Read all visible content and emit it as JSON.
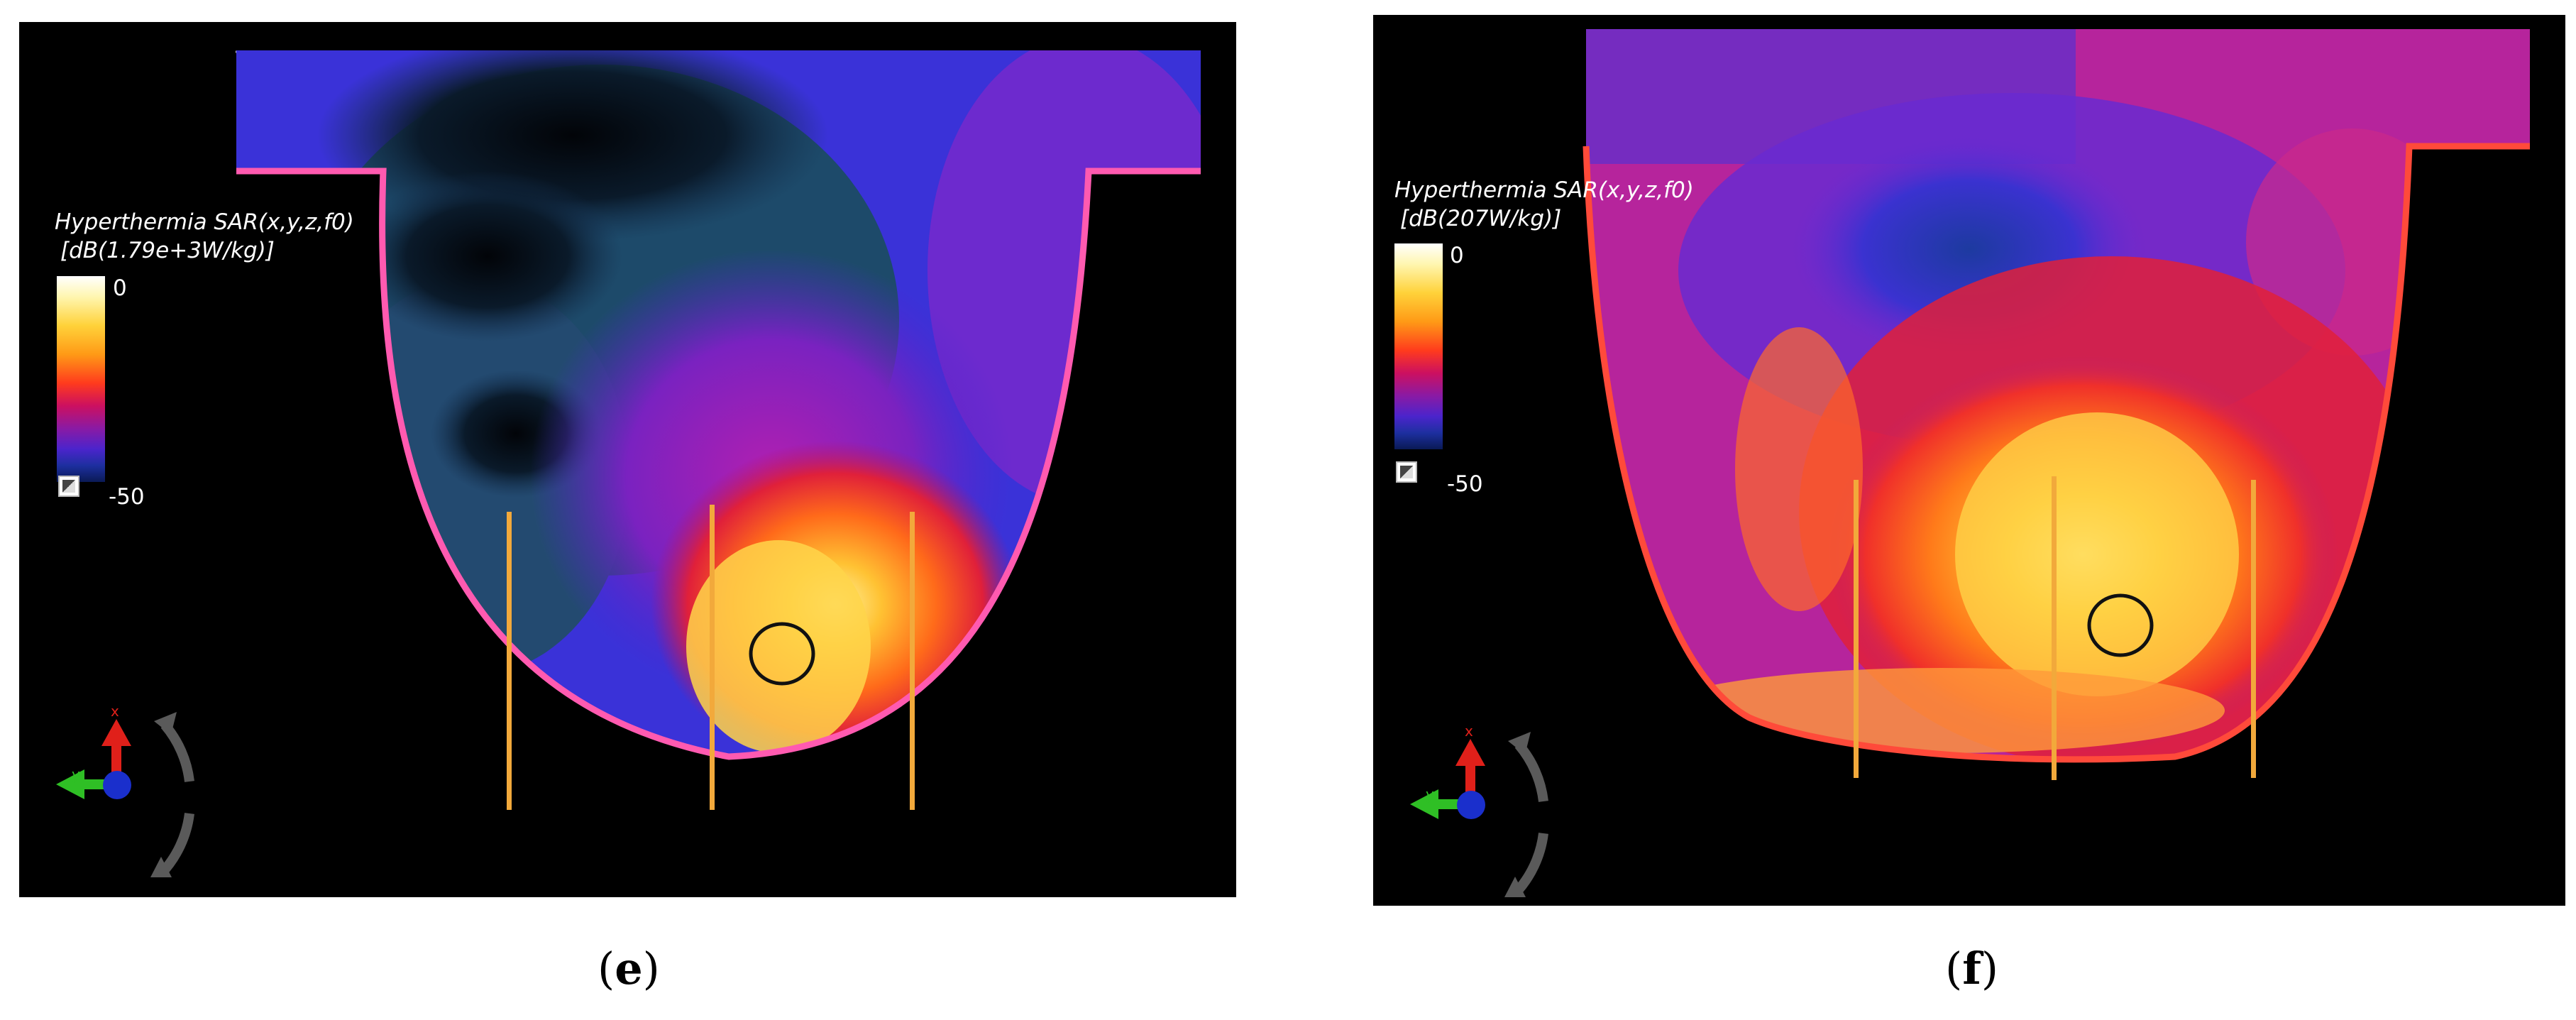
{
  "panels": [
    {
      "id": "e",
      "caption_open": "(",
      "caption_letter": "e",
      "caption_close": ")",
      "legend": {
        "title_line1": "Hyperthermia SAR(x,y,z,f0)",
        "title_line2": "[dB(1.79e+3W/kg)]",
        "max_label": "0",
        "min_label": "-50"
      },
      "axis_label_x": "x",
      "axis_label_y": "y"
    },
    {
      "id": "f",
      "caption_open": "(",
      "caption_letter": "f",
      "caption_close": ")",
      "legend": {
        "title_line1": "Hyperthermia SAR(x,y,z,f0)",
        "title_line2": "[dB(207W/kg)]",
        "max_label": "0",
        "min_label": "-50"
      },
      "axis_label_x": "x",
      "axis_label_y": "y"
    }
  ],
  "colors": {
    "background": "#000000",
    "probe": "#f2a93b",
    "tumor_outline": "#111111",
    "skin_edge": "#ff5ab0",
    "axis_x": "#e0201a",
    "axis_y": "#2fbf25",
    "axis_z": "#1a2fcc",
    "rotate_arrow": "#5a5a5a"
  }
}
